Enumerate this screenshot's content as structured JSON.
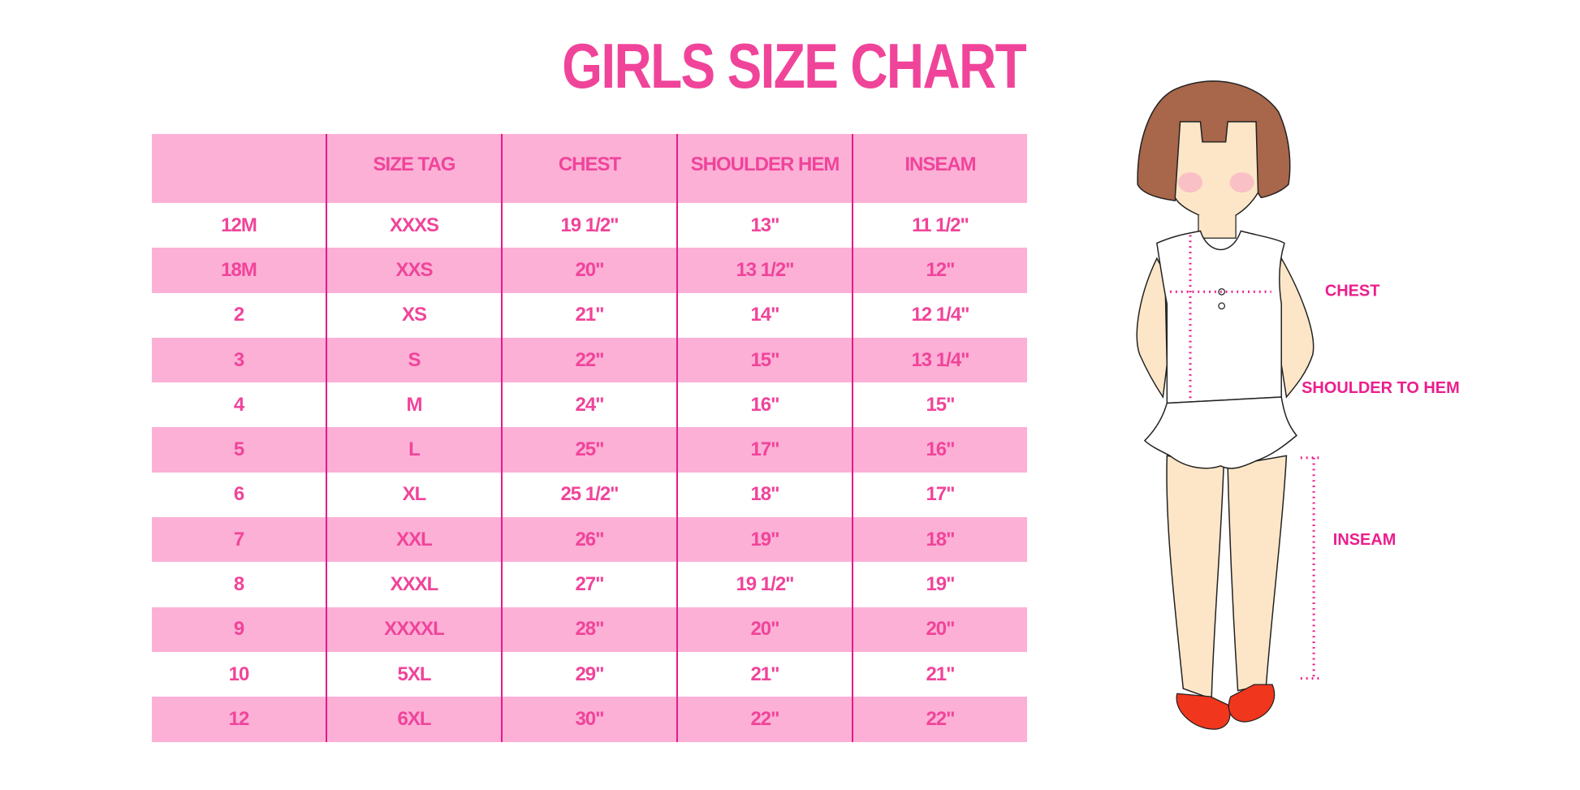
{
  "title": "GIRLS SIZE CHART",
  "colors": {
    "accent": "#f0449a",
    "row_pink": "#fcb0d6",
    "divider": "#e6198b"
  },
  "table": {
    "headers": [
      "",
      "SIZE TAG",
      "CHEST",
      "SHOULDER HEM",
      "INSEAM"
    ],
    "rows": [
      [
        "12M",
        "XXXS",
        "19 1/2\"",
        "13\"",
        "11 1/2\""
      ],
      [
        "18M",
        "XXS",
        "20\"",
        "13 1/2\"",
        "12\""
      ],
      [
        "2",
        "XS",
        "21\"",
        "14\"",
        "12 1/4\""
      ],
      [
        "3",
        "S",
        "22\"",
        "15\"",
        "13 1/4\""
      ],
      [
        "4",
        "M",
        "24\"",
        "16\"",
        "15\""
      ],
      [
        "5",
        "L",
        "25\"",
        "17\"",
        "16\""
      ],
      [
        "6",
        "XL",
        "25 1/2\"",
        "18\"",
        "17\""
      ],
      [
        "7",
        "XXL",
        "26\"",
        "19\"",
        "18\""
      ],
      [
        "8",
        "XXXL",
        "27\"",
        "19 1/2\"",
        "19\""
      ],
      [
        "9",
        "XXXXL",
        "28\"",
        "20\"",
        "20\""
      ],
      [
        "10",
        "5XL",
        "29\"",
        "21\"",
        "21\""
      ],
      [
        "12",
        "6XL",
        "30\"",
        "22\"",
        "22\""
      ]
    ]
  },
  "figure": {
    "labels": {
      "chest": "CHEST",
      "shoulder_to_hem": "SHOULDER TO HEM",
      "inseam": "INSEAM"
    }
  }
}
